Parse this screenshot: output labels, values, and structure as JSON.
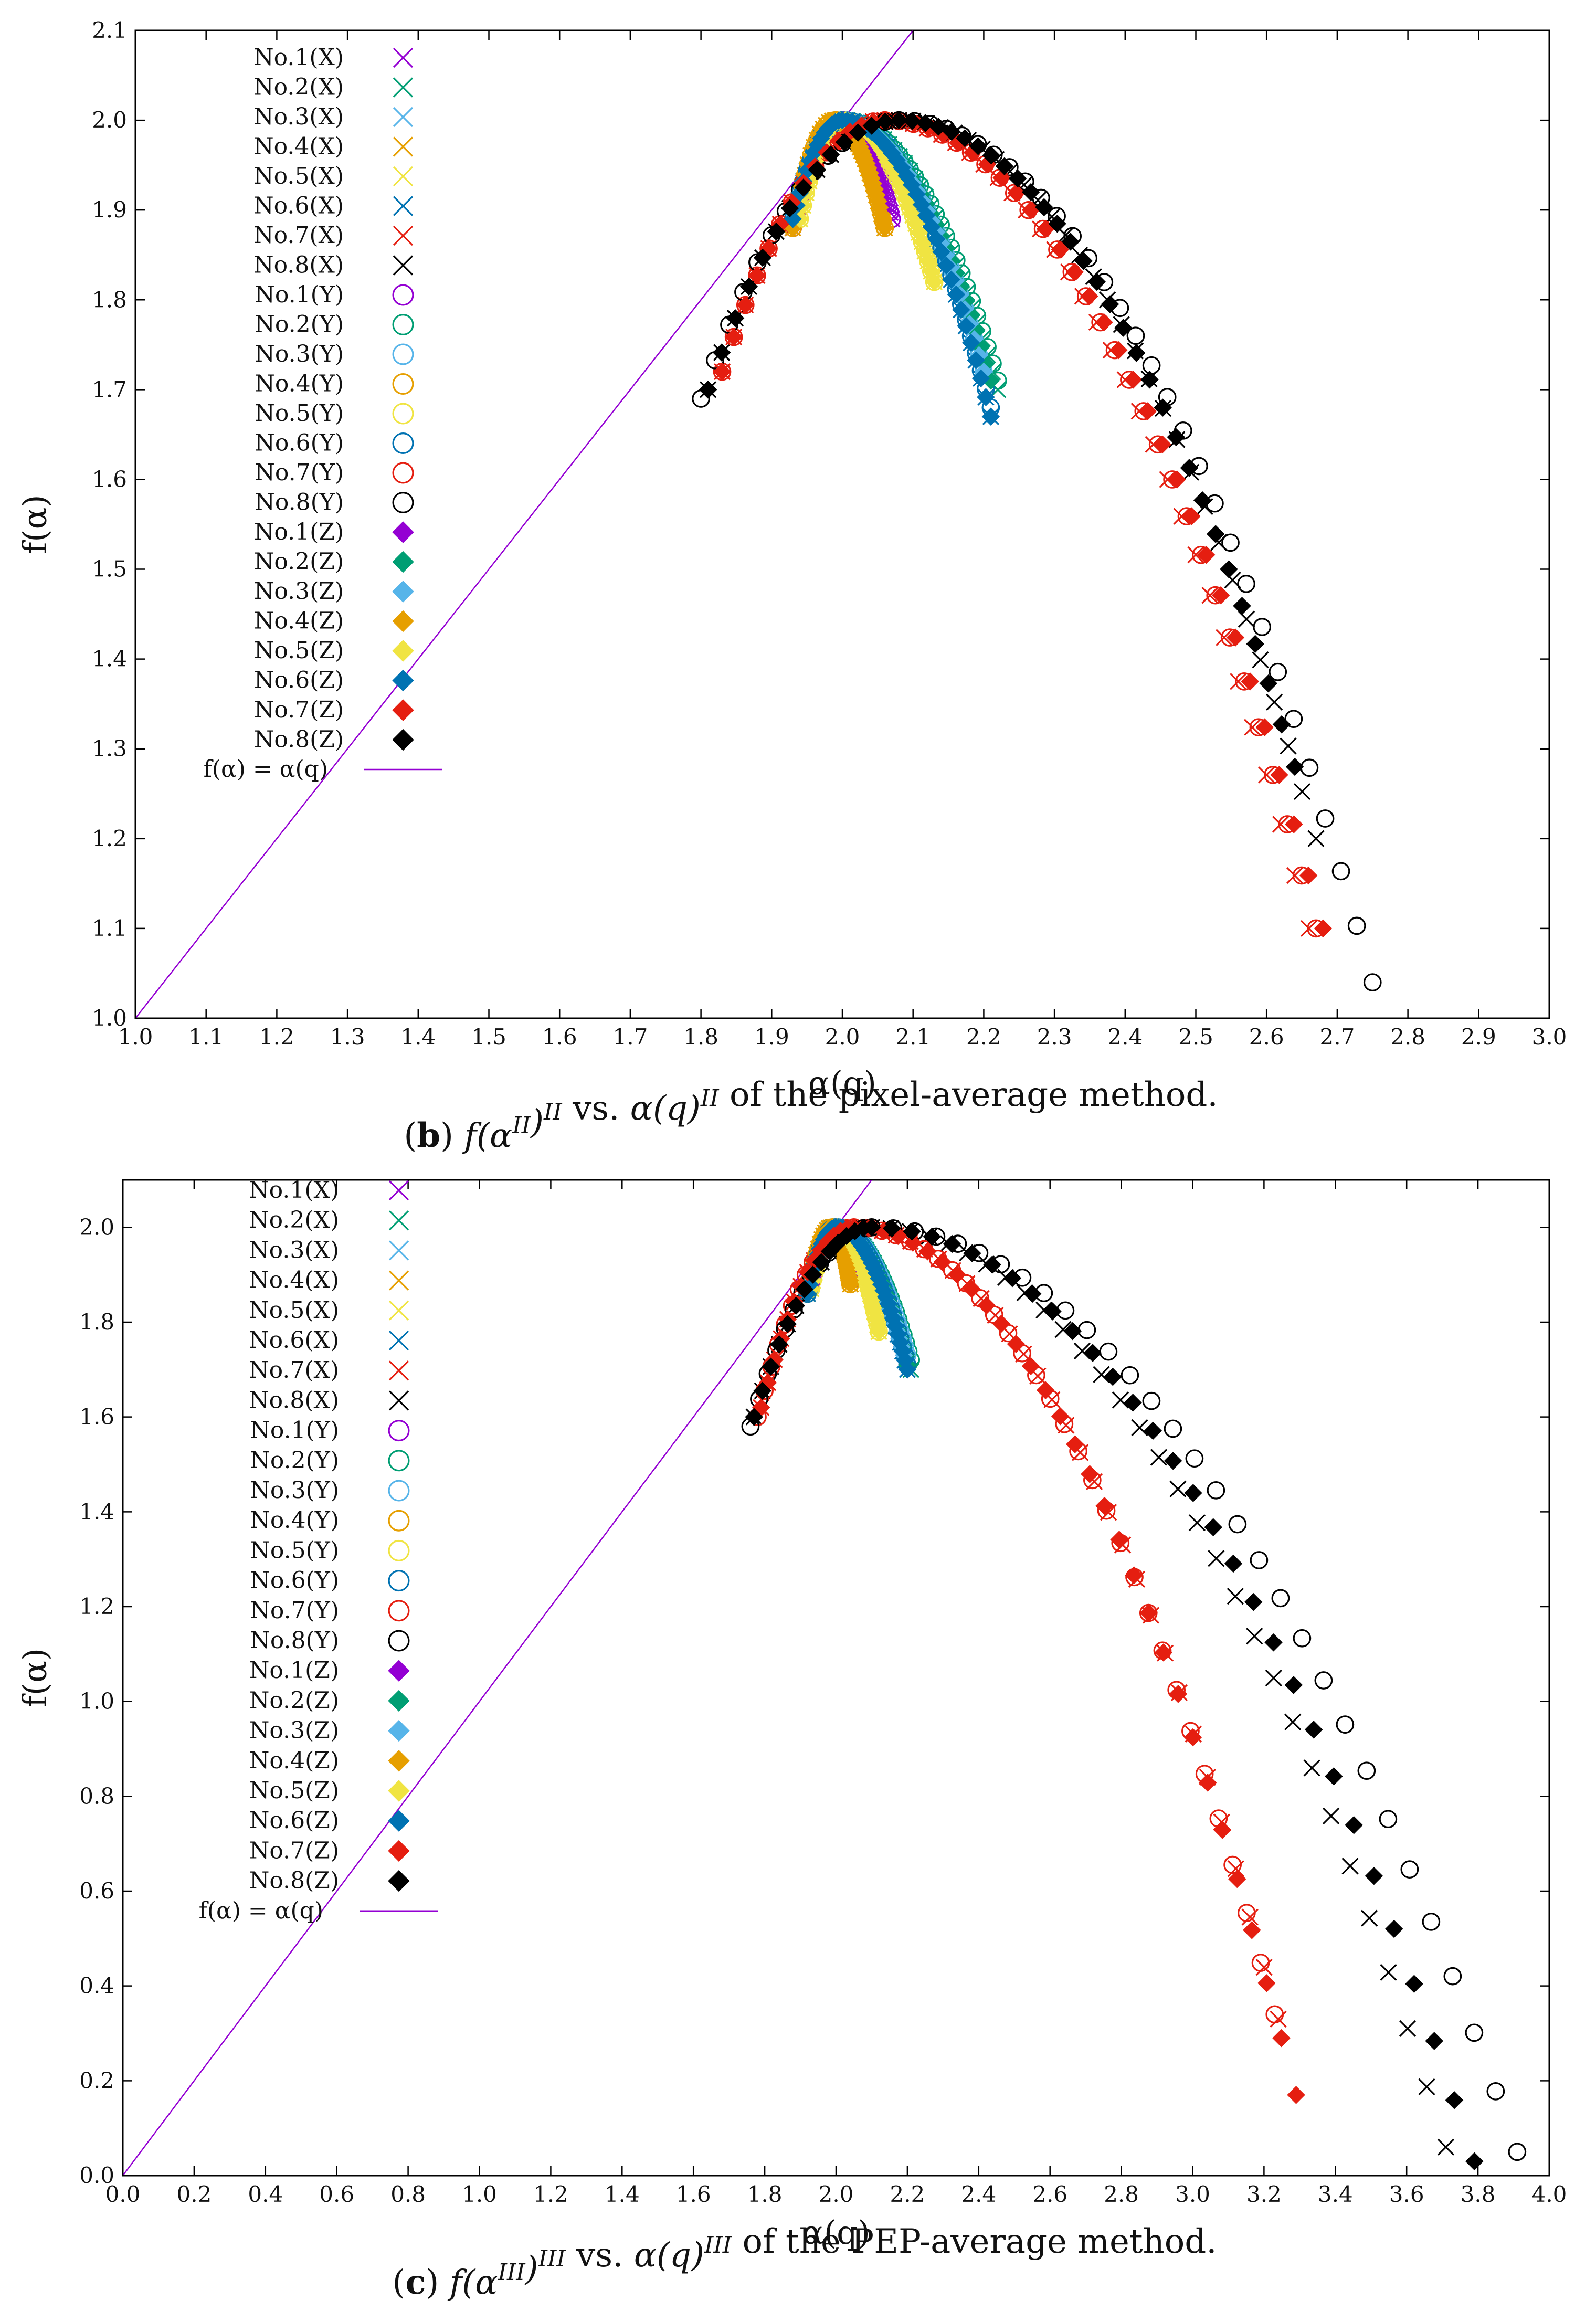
{
  "chart_data": [
    {
      "panel": "b",
      "type": "scatter",
      "caption": {
        "label": "b",
        "formula_html": "f(α^{II})^{II} vs. α(q)^{II}",
        "text": "of the pixel-average method."
      },
      "xlabel": "α(q)",
      "ylabel": "f(α)",
      "xlim": [
        1.0,
        3.0
      ],
      "ylim": [
        1.0,
        2.1
      ],
      "xticks": [
        "1.0",
        "1.1",
        "1.2",
        "1.3",
        "1.4",
        "1.5",
        "1.6",
        "1.7",
        "1.8",
        "1.9",
        "2.0",
        "2.1",
        "2.2",
        "2.3",
        "2.4",
        "2.5",
        "2.6",
        "2.7",
        "2.8",
        "2.9",
        "3.0"
      ],
      "yticks": [
        "1.0",
        "1.1",
        "1.2",
        "1.3",
        "1.4",
        "1.5",
        "1.6",
        "1.7",
        "1.8",
        "1.9",
        "2.0",
        "2.1"
      ],
      "reference_line": {
        "label": "f(α) = α(q)",
        "color": "#9400d3"
      },
      "series": [
        {
          "name": "No.1(X)",
          "marker": "x",
          "color": "#9400d3",
          "alpha_min": 1.93,
          "alpha0": 2.0,
          "alpha_max": 2.07,
          "fmin_left": 1.88,
          "fmin_right": 1.89
        },
        {
          "name": "No.2(X)",
          "marker": "x",
          "color": "#009e73",
          "alpha_min": 1.93,
          "alpha0": 2.0,
          "alpha_max": 2.22,
          "fmin_left": 1.89,
          "fmin_right": 1.7
        },
        {
          "name": "No.3(X)",
          "marker": "x",
          "color": "#56b4e9",
          "alpha_min": 1.93,
          "alpha0": 2.0,
          "alpha_max": 2.2,
          "fmin_left": 1.89,
          "fmin_right": 1.72
        },
        {
          "name": "No.4(X)",
          "marker": "x",
          "color": "#e69f00",
          "alpha_min": 1.93,
          "alpha0": 1.99,
          "alpha_max": 2.06,
          "fmin_left": 1.88,
          "fmin_right": 1.88
        },
        {
          "name": "No.5(X)",
          "marker": "x",
          "color": "#f0e442",
          "alpha_min": 1.94,
          "alpha0": 2.0,
          "alpha_max": 2.13,
          "fmin_left": 1.89,
          "fmin_right": 1.82
        },
        {
          "name": "No.6(X)",
          "marker": "x",
          "color": "#0072b2",
          "alpha_min": 1.93,
          "alpha0": 2.0,
          "alpha_max": 2.21,
          "fmin_left": 1.89,
          "fmin_right": 1.67
        },
        {
          "name": "No.7(X)",
          "marker": "x",
          "color": "#e51e10",
          "alpha_min": 1.83,
          "alpha0": 2.06,
          "alpha_max": 2.66,
          "fmin_left": 1.72,
          "fmin_right": 1.1
        },
        {
          "name": "No.8(X)",
          "marker": "x",
          "color": "#000000",
          "alpha_min": 1.81,
          "alpha0": 2.08,
          "alpha_max": 2.67,
          "fmin_left": 1.7,
          "fmin_right": 1.2
        },
        {
          "name": "No.1(Y)",
          "marker": "circle",
          "color": "#9400d3",
          "alpha_min": 1.93,
          "alpha0": 2.0,
          "alpha_max": 2.07,
          "fmin_left": 1.88,
          "fmin_right": 1.89
        },
        {
          "name": "No.2(Y)",
          "marker": "circle",
          "color": "#009e73",
          "alpha_min": 1.93,
          "alpha0": 2.0,
          "alpha_max": 2.22,
          "fmin_left": 1.89,
          "fmin_right": 1.71
        },
        {
          "name": "No.3(Y)",
          "marker": "circle",
          "color": "#56b4e9",
          "alpha_min": 1.93,
          "alpha0": 2.0,
          "alpha_max": 2.2,
          "fmin_left": 1.89,
          "fmin_right": 1.72
        },
        {
          "name": "No.4(Y)",
          "marker": "circle",
          "color": "#e69f00",
          "alpha_min": 1.93,
          "alpha0": 1.99,
          "alpha_max": 2.06,
          "fmin_left": 1.88,
          "fmin_right": 1.88
        },
        {
          "name": "No.5(Y)",
          "marker": "circle",
          "color": "#f0e442",
          "alpha_min": 1.94,
          "alpha0": 2.0,
          "alpha_max": 2.13,
          "fmin_left": 1.89,
          "fmin_right": 1.82
        },
        {
          "name": "No.6(Y)",
          "marker": "circle",
          "color": "#0072b2",
          "alpha_min": 1.93,
          "alpha0": 2.0,
          "alpha_max": 2.21,
          "fmin_left": 1.89,
          "fmin_right": 1.68
        },
        {
          "name": "No.7(Y)",
          "marker": "circle",
          "color": "#e51e10",
          "alpha_min": 1.83,
          "alpha0": 2.06,
          "alpha_max": 2.67,
          "fmin_left": 1.72,
          "fmin_right": 1.1
        },
        {
          "name": "No.8(Y)",
          "marker": "circle",
          "color": "#000000",
          "alpha_min": 1.8,
          "alpha0": 2.08,
          "alpha_max": 2.75,
          "fmin_left": 1.69,
          "fmin_right": 1.04
        },
        {
          "name": "No.1(Z)",
          "marker": "diamond",
          "color": "#9400d3",
          "alpha_min": 1.93,
          "alpha0": 2.0,
          "alpha_max": 2.06,
          "fmin_left": 1.88,
          "fmin_right": 1.9
        },
        {
          "name": "No.2(Z)",
          "marker": "diamond",
          "color": "#009e73",
          "alpha_min": 1.93,
          "alpha0": 2.0,
          "alpha_max": 2.21,
          "fmin_left": 1.89,
          "fmin_right": 1.71
        },
        {
          "name": "No.3(Z)",
          "marker": "diamond",
          "color": "#56b4e9",
          "alpha_min": 1.93,
          "alpha0": 2.0,
          "alpha_max": 2.2,
          "fmin_left": 1.89,
          "fmin_right": 1.72
        },
        {
          "name": "No.4(Z)",
          "marker": "diamond",
          "color": "#e69f00",
          "alpha_min": 1.93,
          "alpha0": 1.99,
          "alpha_max": 2.06,
          "fmin_left": 1.88,
          "fmin_right": 1.88
        },
        {
          "name": "No.5(Z)",
          "marker": "diamond",
          "color": "#f0e442",
          "alpha_min": 1.94,
          "alpha0": 2.0,
          "alpha_max": 2.13,
          "fmin_left": 1.89,
          "fmin_right": 1.82
        },
        {
          "name": "No.6(Z)",
          "marker": "diamond",
          "color": "#0072b2",
          "alpha_min": 1.93,
          "alpha0": 2.0,
          "alpha_max": 2.21,
          "fmin_left": 1.89,
          "fmin_right": 1.67
        },
        {
          "name": "No.7(Z)",
          "marker": "diamond",
          "color": "#e51e10",
          "alpha_min": 1.83,
          "alpha0": 2.06,
          "alpha_max": 2.68,
          "fmin_left": 1.72,
          "fmin_right": 1.1
        },
        {
          "name": "No.8(Z)",
          "marker": "diamond",
          "color": "#000000",
          "alpha_min": 1.81,
          "alpha0": 2.08,
          "alpha_max": 2.64,
          "fmin_left": 1.7,
          "fmin_right": 1.28
        }
      ]
    },
    {
      "panel": "c",
      "type": "scatter",
      "caption": {
        "label": "c",
        "formula_html": "f(α^{III})^{III} vs. α(q)^{III}",
        "text": "of the PEP-average method."
      },
      "xlabel": "α(q)",
      "ylabel": "f(α)",
      "xlim": [
        0.0,
        4.0
      ],
      "ylim": [
        0.0,
        2.1
      ],
      "xticks": [
        "0.0",
        "0.2",
        "0.4",
        "0.6",
        "0.8",
        "1.0",
        "1.2",
        "1.4",
        "1.6",
        "1.8",
        "2.0",
        "2.2",
        "2.4",
        "2.6",
        "2.8",
        "3.0",
        "3.2",
        "3.4",
        "3.6",
        "3.8",
        "4.0"
      ],
      "yticks": [
        "0.0",
        "0.2",
        "0.4",
        "0.6",
        "0.8",
        "1.0",
        "1.2",
        "1.4",
        "1.6",
        "1.8",
        "2.0"
      ],
      "reference_line": {
        "label": "f(α) = α(q)",
        "color": "#9400d3"
      },
      "series": [
        {
          "name": "No.1(X)",
          "marker": "x",
          "color": "#9400d3",
          "alpha_min": 1.93,
          "alpha0": 2.0,
          "alpha_max": 2.04,
          "fmin_left": 1.88,
          "fmin_right": 1.89
        },
        {
          "name": "No.2(X)",
          "marker": "x",
          "color": "#009e73",
          "alpha_min": 1.92,
          "alpha0": 2.0,
          "alpha_max": 2.21,
          "fmin_left": 1.86,
          "fmin_right": 1.7
        },
        {
          "name": "No.3(X)",
          "marker": "x",
          "color": "#56b4e9",
          "alpha_min": 1.92,
          "alpha0": 2.0,
          "alpha_max": 2.2,
          "fmin_left": 1.86,
          "fmin_right": 1.72
        },
        {
          "name": "No.4(X)",
          "marker": "x",
          "color": "#e69f00",
          "alpha_min": 1.92,
          "alpha0": 1.99,
          "alpha_max": 2.04,
          "fmin_left": 1.86,
          "fmin_right": 1.88
        },
        {
          "name": "No.5(X)",
          "marker": "x",
          "color": "#f0e442",
          "alpha_min": 1.93,
          "alpha0": 2.0,
          "alpha_max": 2.12,
          "fmin_left": 1.87,
          "fmin_right": 1.78
        },
        {
          "name": "No.6(X)",
          "marker": "x",
          "color": "#0072b2",
          "alpha_min": 1.92,
          "alpha0": 2.0,
          "alpha_max": 2.2,
          "fmin_left": 1.86,
          "fmin_right": 1.7
        },
        {
          "name": "No.7(X)",
          "marker": "x",
          "color": "#e51e10",
          "alpha_min": 1.79,
          "alpha0": 2.05,
          "alpha_max": 3.24,
          "fmin_left": 1.62,
          "fmin_right": 0.33
        },
        {
          "name": "No.8(X)",
          "marker": "x",
          "color": "#000000",
          "alpha_min": 1.77,
          "alpha0": 2.1,
          "alpha_max": 3.71,
          "fmin_left": 1.6,
          "fmin_right": 0.06
        },
        {
          "name": "No.1(Y)",
          "marker": "circle",
          "color": "#9400d3",
          "alpha_min": 1.93,
          "alpha0": 2.0,
          "alpha_max": 2.04,
          "fmin_left": 1.88,
          "fmin_right": 1.89
        },
        {
          "name": "No.2(Y)",
          "marker": "circle",
          "color": "#009e73",
          "alpha_min": 1.92,
          "alpha0": 2.0,
          "alpha_max": 2.21,
          "fmin_left": 1.86,
          "fmin_right": 1.72
        },
        {
          "name": "No.3(Y)",
          "marker": "circle",
          "color": "#56b4e9",
          "alpha_min": 1.92,
          "alpha0": 2.0,
          "alpha_max": 2.2,
          "fmin_left": 1.86,
          "fmin_right": 1.73
        },
        {
          "name": "No.4(Y)",
          "marker": "circle",
          "color": "#e69f00",
          "alpha_min": 1.92,
          "alpha0": 1.99,
          "alpha_max": 2.04,
          "fmin_left": 1.86,
          "fmin_right": 1.88
        },
        {
          "name": "No.5(Y)",
          "marker": "circle",
          "color": "#f0e442",
          "alpha_min": 1.93,
          "alpha0": 2.0,
          "alpha_max": 2.12,
          "fmin_left": 1.87,
          "fmin_right": 1.78
        },
        {
          "name": "No.6(Y)",
          "marker": "circle",
          "color": "#0072b2",
          "alpha_min": 1.92,
          "alpha0": 2.0,
          "alpha_max": 2.2,
          "fmin_left": 1.86,
          "fmin_right": 1.71
        },
        {
          "name": "No.7(Y)",
          "marker": "circle",
          "color": "#e51e10",
          "alpha_min": 1.78,
          "alpha0": 2.05,
          "alpha_max": 3.23,
          "fmin_left": 1.6,
          "fmin_right": 0.34
        },
        {
          "name": "No.8(Y)",
          "marker": "circle",
          "color": "#000000",
          "alpha_min": 1.76,
          "alpha0": 2.1,
          "alpha_max": 3.91,
          "fmin_left": 1.58,
          "fmin_right": 0.05
        },
        {
          "name": "No.1(Z)",
          "marker": "diamond",
          "color": "#9400d3",
          "alpha_min": 1.93,
          "alpha0": 2.0,
          "alpha_max": 2.04,
          "fmin_left": 1.88,
          "fmin_right": 1.9
        },
        {
          "name": "No.2(Z)",
          "marker": "diamond",
          "color": "#009e73",
          "alpha_min": 1.92,
          "alpha0": 2.0,
          "alpha_max": 2.2,
          "fmin_left": 1.86,
          "fmin_right": 1.71
        },
        {
          "name": "No.3(Z)",
          "marker": "diamond",
          "color": "#56b4e9",
          "alpha_min": 1.92,
          "alpha0": 2.0,
          "alpha_max": 2.19,
          "fmin_left": 1.86,
          "fmin_right": 1.73
        },
        {
          "name": "No.4(Z)",
          "marker": "diamond",
          "color": "#e69f00",
          "alpha_min": 1.92,
          "alpha0": 1.99,
          "alpha_max": 2.04,
          "fmin_left": 1.86,
          "fmin_right": 1.88
        },
        {
          "name": "No.5(Z)",
          "marker": "diamond",
          "color": "#f0e442",
          "alpha_min": 1.93,
          "alpha0": 2.0,
          "alpha_max": 2.12,
          "fmin_left": 1.87,
          "fmin_right": 1.78
        },
        {
          "name": "No.6(Z)",
          "marker": "diamond",
          "color": "#0072b2",
          "alpha_min": 1.92,
          "alpha0": 2.0,
          "alpha_max": 2.2,
          "fmin_left": 1.86,
          "fmin_right": 1.7
        },
        {
          "name": "No.7(Z)",
          "marker": "diamond",
          "color": "#e51e10",
          "alpha_min": 1.79,
          "alpha0": 2.05,
          "alpha_max": 3.29,
          "fmin_left": 1.62,
          "fmin_right": 0.17
        },
        {
          "name": "No.8(Z)",
          "marker": "diamond",
          "color": "#000000",
          "alpha_min": 1.77,
          "alpha0": 2.1,
          "alpha_max": 3.79,
          "fmin_left": 1.6,
          "fmin_right": 0.03
        }
      ]
    }
  ]
}
